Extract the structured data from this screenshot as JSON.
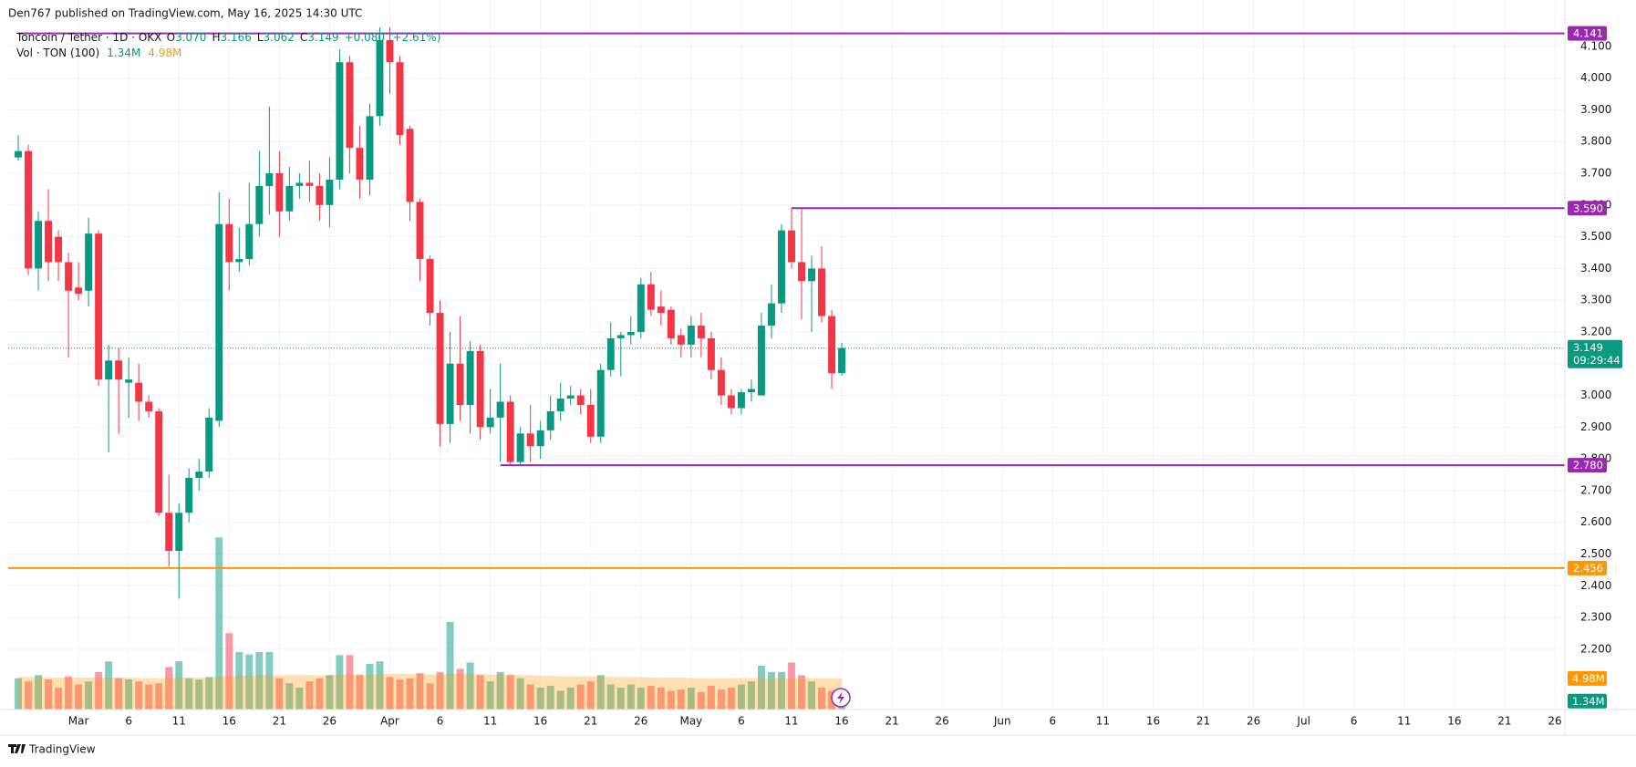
{
  "header": {
    "publisher": "Den767 published on TradingView.com, May 16, 2025 14:30 UTC"
  },
  "footer": {
    "brand": "TradingView"
  },
  "chart_data": {
    "type": "candlestick",
    "title": "Toncoin / Tether · 1D · OKX",
    "legend": [
      {
        "key": "O",
        "text": "3.070"
      },
      {
        "key": "H",
        "text": "3.166"
      },
      {
        "key": "L",
        "text": "3.062"
      },
      {
        "key": "C",
        "text": "3.149"
      }
    ],
    "change": "+0.080 (+2.61%)",
    "up_color": "#089981",
    "down_color": "#f23645",
    "grid": true,
    "x": [
      "02-23",
      "02-24",
      "02-25",
      "02-26",
      "02-27",
      "02-28",
      "03-01",
      "03-02",
      "03-03",
      "03-04",
      "03-05",
      "03-06",
      "03-07",
      "03-08",
      "03-09",
      "03-10",
      "03-11",
      "03-12",
      "03-13",
      "03-14",
      "03-15",
      "03-16",
      "03-17",
      "03-18",
      "03-19",
      "03-20",
      "03-21",
      "03-22",
      "03-23",
      "03-24",
      "03-25",
      "03-26",
      "03-27",
      "03-28",
      "03-29",
      "03-30",
      "03-31",
      "04-01",
      "04-02",
      "04-03",
      "04-04",
      "04-05",
      "04-06",
      "04-07",
      "04-08",
      "04-09",
      "04-10",
      "04-11",
      "04-12",
      "04-13",
      "04-14",
      "04-15",
      "04-16",
      "04-17",
      "04-18",
      "04-19",
      "04-20",
      "04-21",
      "04-22",
      "04-23",
      "04-24",
      "04-25",
      "04-26",
      "04-27",
      "04-28",
      "04-29",
      "04-30",
      "05-01",
      "05-02",
      "05-03",
      "05-04",
      "05-05",
      "05-06",
      "05-07",
      "05-08",
      "05-09",
      "05-10",
      "05-11",
      "05-12",
      "05-13",
      "05-14",
      "05-15",
      "05-16"
    ],
    "open": [
      3.75,
      3.77,
      3.4,
      3.55,
      3.5,
      3.42,
      3.34,
      3.33,
      3.51,
      3.05,
      3.11,
      3.04,
      3.04,
      2.98,
      2.95,
      2.63,
      2.51,
      2.63,
      2.74,
      2.76,
      2.92,
      3.54,
      3.42,
      3.43,
      3.54,
      3.66,
      3.7,
      3.58,
      3.66,
      3.67,
      3.66,
      3.6,
      3.68,
      4.05,
      3.78,
      3.68,
      3.88,
      4.12,
      4.05,
      3.84,
      3.61,
      3.43,
      3.26,
      2.91,
      3.1,
      2.97,
      3.14,
      2.9,
      2.93,
      2.98,
      2.79,
      2.88,
      2.84,
      2.89,
      2.95,
      2.99,
      3.0,
      2.97,
      2.87,
      3.08,
      3.18,
      3.19,
      3.2,
      3.35,
      3.28,
      3.27,
      3.19,
      3.16,
      3.22,
      3.18,
      3.08,
      3.0,
      2.96,
      3.01,
      3.0,
      3.22,
      3.29,
      3.52,
      3.42,
      3.36,
      3.4,
      3.25,
      3.07
    ],
    "high": [
      3.82,
      3.79,
      3.58,
      3.65,
      3.52,
      3.45,
      3.42,
      3.56,
      3.52,
      3.16,
      3.15,
      3.12,
      3.1,
      3.0,
      2.96,
      2.75,
      2.66,
      2.77,
      2.8,
      2.96,
      3.64,
      3.62,
      3.53,
      3.67,
      3.77,
      3.91,
      3.77,
      3.72,
      3.7,
      3.74,
      3.7,
      3.75,
      4.09,
      4.07,
      3.85,
      3.92,
      4.16,
      4.16,
      4.07,
      3.85,
      3.62,
      3.44,
      3.3,
      3.2,
      3.25,
      3.17,
      3.16,
      3.02,
      3.1,
      3.0,
      2.9,
      2.97,
      2.92,
      3.0,
      3.04,
      3.03,
      3.02,
      3.02,
      3.1,
      3.23,
      3.2,
      3.25,
      3.37,
      3.39,
      3.33,
      3.28,
      3.21,
      3.25,
      3.26,
      3.2,
      3.12,
      3.02,
      3.02,
      3.05,
      3.26,
      3.35,
      3.54,
      3.59,
      3.59,
      3.44,
      3.47,
      3.27,
      3.166
    ],
    "low": [
      3.74,
      3.38,
      3.33,
      3.36,
      3.36,
      3.12,
      3.3,
      3.28,
      3.03,
      2.82,
      2.88,
      2.93,
      2.92,
      2.93,
      2.62,
      2.46,
      2.36,
      2.6,
      2.7,
      2.74,
      2.9,
      3.33,
      3.39,
      3.41,
      3.5,
      3.57,
      3.5,
      3.55,
      3.62,
      3.61,
      3.55,
      3.53,
      3.65,
      3.7,
      3.62,
      3.63,
      3.85,
      3.95,
      3.79,
      3.55,
      3.36,
      3.22,
      2.84,
      2.85,
      2.92,
      2.88,
      2.86,
      2.88,
      2.79,
      2.78,
      2.78,
      2.79,
      2.8,
      2.86,
      2.92,
      2.97,
      2.94,
      2.85,
      2.85,
      3.06,
      3.06,
      3.16,
      3.18,
      3.25,
      3.22,
      3.16,
      3.12,
      3.12,
      3.12,
      3.05,
      2.97,
      2.94,
      2.94,
      2.98,
      3.0,
      3.18,
      3.26,
      3.4,
      3.24,
      3.2,
      3.23,
      3.02,
      3.062
    ],
    "close": [
      3.77,
      3.4,
      3.55,
      3.42,
      3.42,
      3.33,
      3.32,
      3.51,
      3.05,
      3.11,
      3.05,
      3.05,
      2.98,
      2.95,
      2.63,
      2.51,
      2.63,
      2.74,
      2.76,
      2.93,
      3.54,
      3.42,
      3.43,
      3.54,
      3.66,
      3.7,
      3.58,
      3.66,
      3.67,
      3.66,
      3.6,
      3.68,
      4.05,
      3.78,
      3.68,
      3.88,
      4.12,
      4.05,
      3.82,
      3.61,
      3.43,
      3.26,
      2.91,
      3.1,
      2.97,
      3.14,
      2.9,
      2.93,
      2.98,
      2.79,
      2.88,
      2.84,
      2.89,
      2.95,
      2.99,
      3.0,
      2.97,
      2.87,
      3.08,
      3.18,
      3.19,
      3.2,
      3.35,
      3.27,
      3.26,
      3.18,
      3.16,
      3.22,
      3.18,
      3.08,
      3.0,
      2.96,
      3.01,
      3.02,
      3.22,
      3.29,
      3.52,
      3.42,
      3.36,
      3.4,
      3.25,
      3.07,
      3.149
    ],
    "xlim": [
      "02-22",
      "07-27"
    ],
    "xticks": [
      {
        "value": "03-01",
        "label": "Mar"
      },
      {
        "value": "03-06",
        "label": "6"
      },
      {
        "value": "03-11",
        "label": "11"
      },
      {
        "value": "03-16",
        "label": "16"
      },
      {
        "value": "03-21",
        "label": "21"
      },
      {
        "value": "03-26",
        "label": "26"
      },
      {
        "value": "04-01",
        "label": "Apr"
      },
      {
        "value": "04-06",
        "label": "6"
      },
      {
        "value": "04-11",
        "label": "11"
      },
      {
        "value": "04-16",
        "label": "16"
      },
      {
        "value": "04-21",
        "label": "21"
      },
      {
        "value": "04-26",
        "label": "26"
      },
      {
        "value": "05-01",
        "label": "May"
      },
      {
        "value": "05-06",
        "label": "6"
      },
      {
        "value": "05-11",
        "label": "11"
      },
      {
        "value": "05-16",
        "label": "16"
      },
      {
        "value": "05-21",
        "label": "21"
      },
      {
        "value": "05-26",
        "label": "26"
      },
      {
        "value": "06-01",
        "label": "Jun"
      },
      {
        "value": "06-06",
        "label": "6"
      },
      {
        "value": "06-11",
        "label": "11"
      },
      {
        "value": "06-16",
        "label": "16"
      },
      {
        "value": "06-21",
        "label": "21"
      },
      {
        "value": "06-26",
        "label": "26"
      },
      {
        "value": "07-01",
        "label": "Jul"
      },
      {
        "value": "07-06",
        "label": "6"
      },
      {
        "value": "07-11",
        "label": "11"
      },
      {
        "value": "07-16",
        "label": "16"
      },
      {
        "value": "07-21",
        "label": "21"
      },
      {
        "value": "07-26",
        "label": "26"
      }
    ],
    "ylim": [
      2.01,
      4.18
    ],
    "yticks": [
      {
        "value": 2.2,
        "label": "2.200"
      },
      {
        "value": 2.3,
        "label": "2.300"
      },
      {
        "value": 2.4,
        "label": "2.400"
      },
      {
        "value": 2.5,
        "label": "2.500"
      },
      {
        "value": 2.6,
        "label": "2.600"
      },
      {
        "value": 2.7,
        "label": "2.700"
      },
      {
        "value": 2.8,
        "label": "2.800"
      },
      {
        "value": 2.9,
        "label": "2.900"
      },
      {
        "value": 3.0,
        "label": "3.000"
      },
      {
        "value": 3.1,
        "label": "3.100"
      },
      {
        "value": 3.2,
        "label": "3.200"
      },
      {
        "value": 3.3,
        "label": "3.300"
      },
      {
        "value": 3.4,
        "label": "3.400"
      },
      {
        "value": 3.5,
        "label": "3.500"
      },
      {
        "value": 3.6,
        "label": "3.600"
      },
      {
        "value": 3.7,
        "label": "3.700"
      },
      {
        "value": 3.8,
        "label": "3.800"
      },
      {
        "value": 3.9,
        "label": "3.900"
      },
      {
        "value": 4.0,
        "label": "4.000"
      },
      {
        "value": 4.1,
        "label": "4.100"
      }
    ],
    "levels": [
      {
        "value": 4.141,
        "label": "4.141",
        "color": "#9c27b0",
        "start": "02-23"
      },
      {
        "value": 3.59,
        "label": "3.590",
        "color": "#9c27b0",
        "start": "05-11"
      },
      {
        "value": 2.78,
        "label": "2.780",
        "color": "#9c27b0",
        "start": "04-12"
      },
      {
        "value": 2.456,
        "label": "2.456",
        "color": "#ff9800",
        "start": "02-22"
      }
    ],
    "last_price": {
      "value": 3.149,
      "label": "3.149",
      "countdown": "09:29:44",
      "color": "#089981"
    },
    "volume": {
      "name": "Vol · TON (100)",
      "ylim": [
        0,
        110
      ],
      "up_color": "rgba(8,153,129,0.5)",
      "down_color": "rgba(242,54,69,0.5)",
      "ma_color": "#ff9800",
      "last_color": "#089981",
      "values": [
        5.0,
        4.5,
        5.5,
        4.8,
        3.5,
        5.3,
        4.0,
        4.5,
        6.0,
        7.7,
        5.0,
        4.8,
        4.5,
        4.0,
        4.2,
        6.8,
        7.7,
        5.0,
        4.8,
        5.2,
        27.5,
        12.2,
        9.2,
        8.8,
        9.2,
        9.2,
        5.0,
        4.2,
        3.5,
        4.5,
        5.0,
        5.5,
        8.7,
        8.7,
        5.5,
        7.3,
        7.7,
        5.2,
        4.8,
        5.0,
        5.8,
        4.2,
        6.0,
        14.0,
        6.5,
        7.5,
        5.5,
        4.5,
        6.0,
        5.5,
        5.0,
        4.0,
        3.5,
        3.8,
        3.0,
        3.5,
        4.0,
        4.5,
        5.5,
        4.0,
        3.5,
        4.0,
        3.5,
        3.8,
        3.5,
        3.0,
        3.2,
        3.5,
        2.8,
        3.8,
        3.2,
        3.5,
        4.0,
        4.5,
        7.0,
        6.0,
        6.0,
        7.5,
        5.5,
        4.5,
        3.5,
        3.0,
        1.34
      ],
      "value_labels": [
        null,
        null,
        null,
        null,
        null,
        null,
        null,
        null,
        null,
        null,
        null,
        null,
        null,
        null,
        null,
        null,
        null,
        null,
        null,
        null,
        null,
        null,
        null,
        null,
        null,
        null,
        null,
        null,
        null,
        null,
        null,
        null,
        null,
        null,
        null,
        null,
        null,
        null,
        null,
        null,
        null,
        null,
        null,
        null,
        null,
        null,
        null,
        null,
        null,
        null,
        null,
        null,
        null,
        null,
        null,
        null,
        null,
        null,
        null,
        null,
        null,
        null,
        null,
        null,
        null,
        null,
        null,
        null,
        null,
        null,
        null,
        null,
        null,
        null,
        null,
        null,
        null,
        null,
        null,
        null,
        null,
        null,
        "1.34M"
      ],
      "ma_values": [
        5.2,
        5.2,
        5.2,
        5.1,
        5.1,
        5.1,
        5.1,
        5.1,
        5.1,
        5.1,
        5.1,
        5.1,
        5.0,
        5.0,
        5.0,
        5.0,
        5.1,
        5.1,
        5.1,
        5.1,
        5.3,
        5.3,
        5.4,
        5.4,
        5.5,
        5.5,
        5.5,
        5.5,
        5.5,
        5.5,
        5.5,
        5.5,
        5.6,
        5.6,
        5.6,
        5.6,
        5.7,
        5.7,
        5.7,
        5.7,
        5.7,
        5.6,
        5.6,
        5.7,
        5.7,
        5.7,
        5.7,
        5.6,
        5.6,
        5.6,
        5.5,
        5.5,
        5.4,
        5.4,
        5.3,
        5.3,
        5.3,
        5.3,
        5.3,
        5.2,
        5.2,
        5.2,
        5.2,
        5.1,
        5.1,
        5.1,
        5.1,
        5.0,
        5.0,
        5.0,
        5.0,
        5.0,
        5.0,
        5.0,
        5.0,
        5.0,
        5.0,
        5.0,
        5.0,
        5.0,
        5.0,
        5.0,
        4.98
      ],
      "ma_value_labels": [
        null,
        null,
        null,
        null,
        null,
        null,
        null,
        null,
        null,
        null,
        null,
        null,
        null,
        null,
        null,
        null,
        null,
        null,
        null,
        null,
        null,
        null,
        null,
        null,
        null,
        null,
        null,
        null,
        null,
        null,
        null,
        null,
        null,
        null,
        null,
        null,
        null,
        null,
        null,
        null,
        null,
        null,
        null,
        null,
        null,
        null,
        null,
        null,
        null,
        null,
        null,
        null,
        null,
        null,
        null,
        null,
        null,
        null,
        null,
        null,
        null,
        null,
        null,
        null,
        null,
        null,
        null,
        null,
        null,
        null,
        null,
        null,
        null,
        null,
        null,
        null,
        null,
        null,
        null,
        null,
        null,
        null,
        "4.98M"
      ]
    }
  }
}
